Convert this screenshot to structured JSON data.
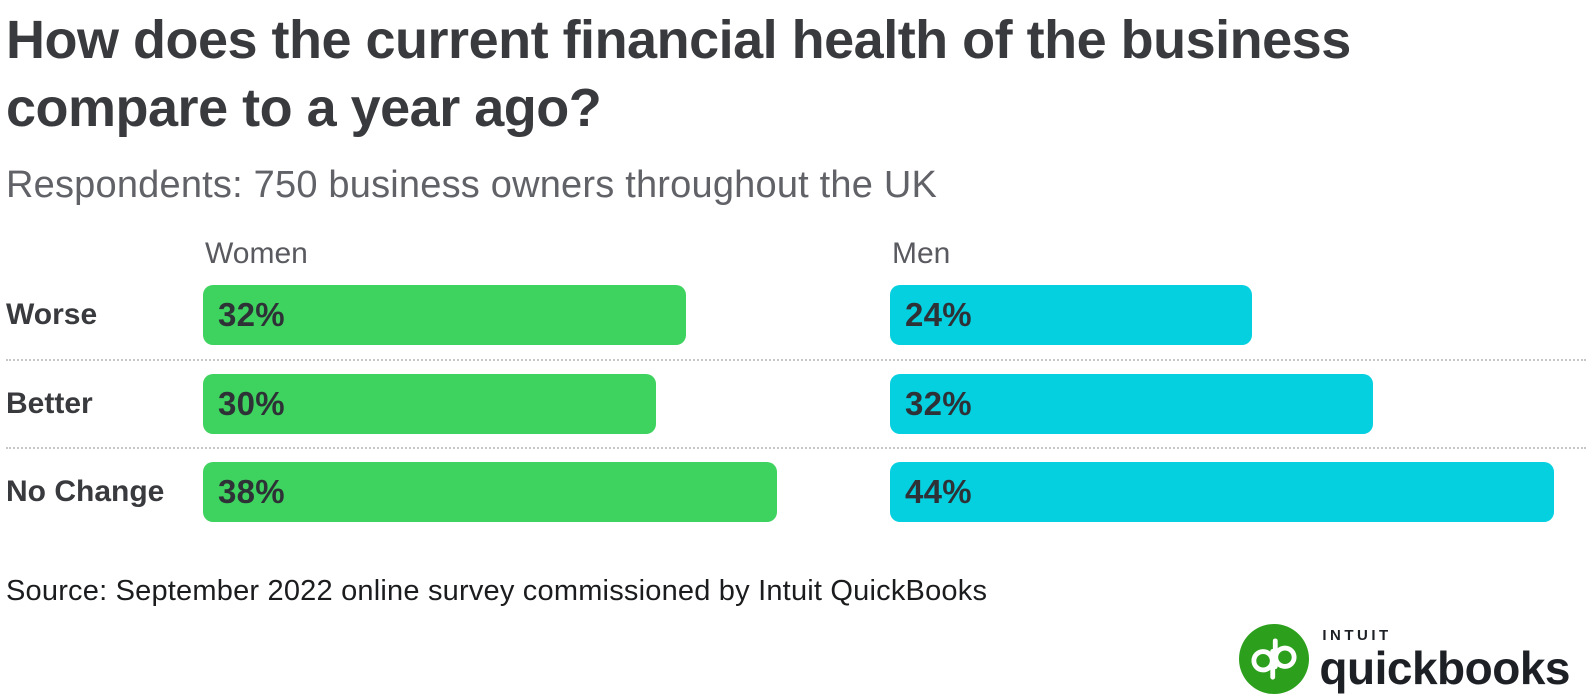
{
  "title": "How does the current financial health of the business compare to a year ago?",
  "subtitle": "Respondents: 750 business owners throughout the UK",
  "source": "Source: September 2022 online survey commissioned by Intuit QuickBooks",
  "chart_data": {
    "type": "bar",
    "orientation": "horizontal",
    "title": "How does the current financial health of the business compare to a year ago?",
    "subtitle": "Respondents: 750 business owners throughout the UK",
    "categories": [
      "Worse",
      "Better",
      "No Change"
    ],
    "series": [
      {
        "name": "Women",
        "color": "#3ed35f",
        "values": [
          32,
          30,
          38
        ],
        "labels": [
          "32%",
          "30%",
          "38%"
        ]
      },
      {
        "name": "Men",
        "color": "#04d0e0",
        "values": [
          24,
          32,
          44
        ],
        "labels": [
          "24%",
          "32%",
          "44%"
        ]
      }
    ],
    "value_suffix": "%",
    "xlim": [
      0,
      45
    ],
    "grid": false,
    "legend_position": "column-headers",
    "separator_style": "dotted"
  },
  "logo": {
    "icon": "qb-monogram-icon",
    "icon_color": "#2ca01c",
    "intuit": "INTUIT",
    "quickbooks": "quickbooks"
  },
  "colors": {
    "title": "#393a3d",
    "subtitle": "#616267",
    "women_bar": "#3ed35f",
    "men_bar": "#04d0e0",
    "separator": "#c7c8c9",
    "logo_green": "#2ca01c"
  }
}
